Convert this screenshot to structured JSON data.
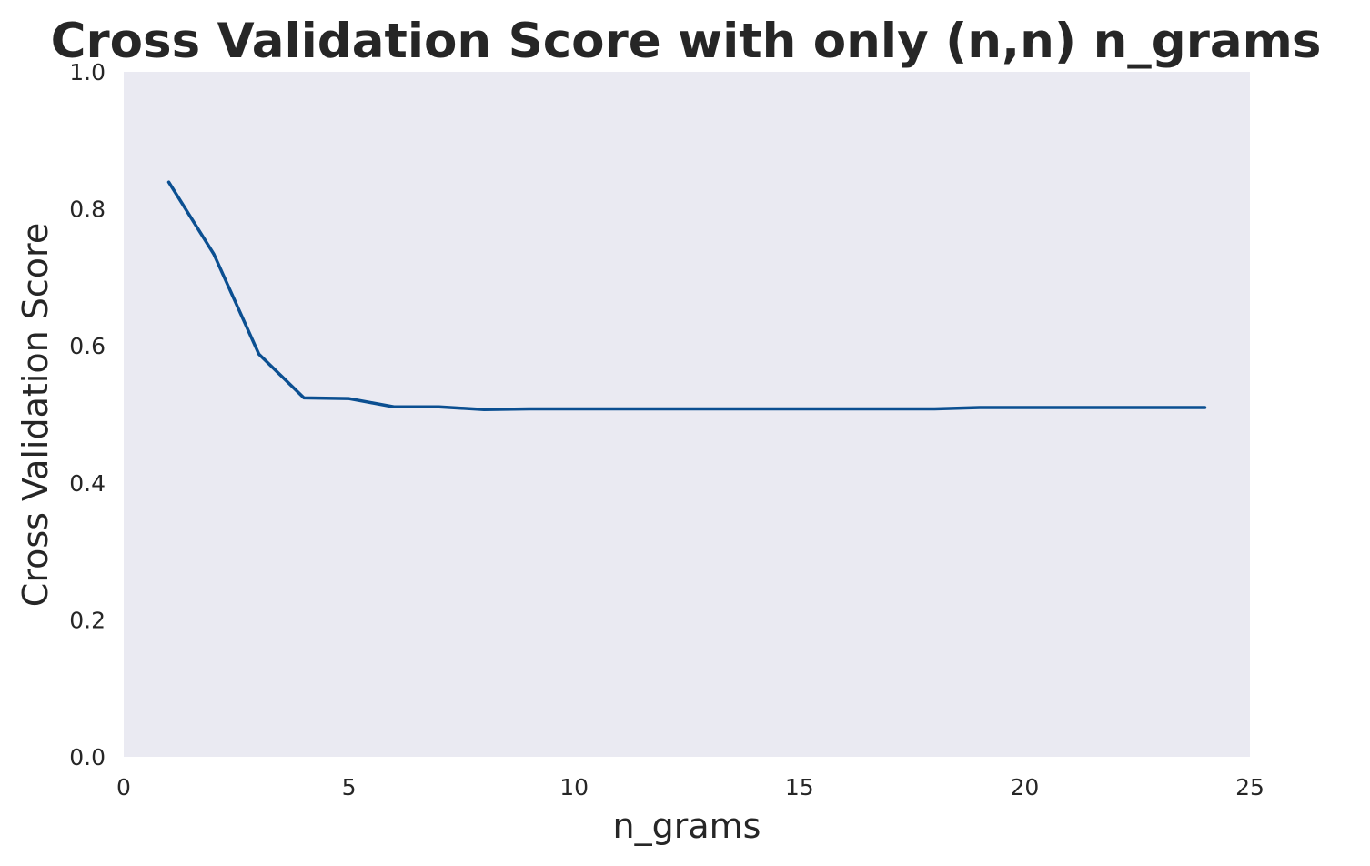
{
  "chart_data": {
    "type": "line",
    "title": "Cross Validation Score with only (n,n) n_grams",
    "xlabel": "n_grams",
    "ylabel": "Cross Validation Score",
    "xlim": [
      0,
      25
    ],
    "ylim": [
      0,
      1.0
    ],
    "x_ticks": [
      "0",
      "5",
      "10",
      "15",
      "20",
      "25"
    ],
    "y_ticks": [
      "0.0",
      "0.2",
      "0.4",
      "0.6",
      "0.8",
      "1.0"
    ],
    "grid": false,
    "series": [
      {
        "x": [
          1,
          2,
          3,
          4,
          5,
          6,
          7,
          8,
          9,
          10,
          11,
          12,
          13,
          14,
          15,
          16,
          17,
          18,
          19,
          20,
          21,
          22,
          23,
          24
        ],
        "y": [
          0.839,
          0.734,
          0.588,
          0.524,
          0.523,
          0.511,
          0.511,
          0.507,
          0.508,
          0.508,
          0.508,
          0.508,
          0.508,
          0.508,
          0.508,
          0.508,
          0.508,
          0.508,
          0.51,
          0.51,
          0.51,
          0.51,
          0.51,
          0.51
        ]
      }
    ]
  },
  "colors": {
    "plot_background": "#eaeaf2",
    "line": "#0b4f91",
    "text": "#262626"
  }
}
